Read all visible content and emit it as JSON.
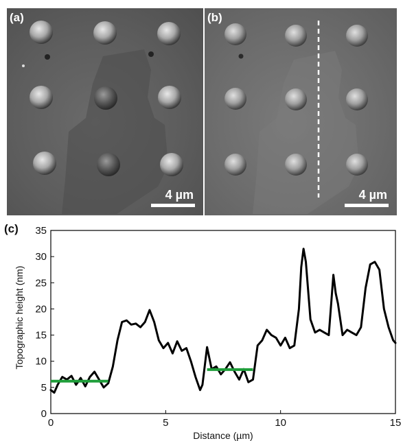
{
  "panels": {
    "a": {
      "label": "(a)",
      "scale_label": "4 µm"
    },
    "b": {
      "label": "(b)",
      "scale_label": "4 µm"
    },
    "c": {
      "label": "(c)"
    }
  },
  "chart_data": {
    "type": "line",
    "xlabel": "Distance (µm)",
    "ylabel": "Topographic height (nm)",
    "xlim": [
      0,
      15
    ],
    "ylim": [
      0,
      35
    ],
    "xticks": [
      0,
      5,
      10,
      15
    ],
    "yticks": [
      0,
      5,
      10,
      15,
      20,
      25,
      30,
      35
    ],
    "colors": {
      "profile": "#000000",
      "level_marker": "#1f9e3a"
    },
    "series": [
      {
        "x": [
          0,
          0.15,
          0.3,
          0.5,
          0.7,
          0.9,
          1.1,
          1.3,
          1.5,
          1.7,
          1.9,
          2.1,
          2.3,
          2.5,
          2.7,
          2.9,
          3.1,
          3.3,
          3.5,
          3.7,
          3.9,
          4.1,
          4.3,
          4.5,
          4.7,
          4.9,
          5.1,
          5.3,
          5.5,
          5.7,
          5.9,
          6.1,
          6.3,
          6.5,
          6.6,
          6.8,
          7.0,
          7.2,
          7.4,
          7.6,
          7.8,
          8.0,
          8.2,
          8.4,
          8.6,
          8.8,
          9.0,
          9.2,
          9.4,
          9.6,
          9.8,
          10.0,
          10.2,
          10.4,
          10.6,
          10.8,
          10.9,
          11.0,
          11.1,
          11.3,
          11.5,
          11.7,
          11.9,
          12.1,
          12.3,
          12.4,
          12.5,
          12.7,
          12.9,
          13.1,
          13.3,
          13.5,
          13.7,
          13.9,
          14.1,
          14.3,
          14.5,
          14.7,
          14.9,
          15.0
        ],
        "y": [
          4.5,
          4.0,
          5.5,
          7.0,
          6.5,
          7.2,
          5.5,
          6.8,
          5.2,
          7.0,
          8.0,
          6.5,
          5.0,
          5.8,
          9.0,
          14.0,
          17.5,
          17.8,
          17.0,
          17.2,
          16.5,
          17.5,
          19.8,
          17.5,
          14.0,
          12.5,
          13.5,
          11.5,
          13.8,
          12.0,
          12.5,
          10.0,
          7.0,
          4.5,
          5.5,
          12.7,
          8.5,
          9.0,
          7.5,
          8.5,
          9.8,
          8.0,
          6.5,
          8.5,
          6.0,
          6.5,
          13.0,
          14.0,
          16.0,
          15.0,
          14.5,
          13.0,
          14.5,
          12.5,
          13.0,
          20.0,
          28.0,
          31.5,
          29.0,
          18.0,
          15.5,
          16.0,
          15.5,
          15.0,
          26.5,
          23.0,
          21.0,
          15.0,
          16.0,
          15.5,
          15.0,
          16.5,
          24.0,
          28.5,
          29.0,
          27.5,
          20.0,
          16.5,
          14.0,
          13.5
        ]
      }
    ],
    "level_markers": [
      {
        "x": [
          0,
          2.5
        ],
        "y": 6.2
      },
      {
        "x": [
          6.8,
          8.8
        ],
        "y": 8.4
      }
    ]
  }
}
